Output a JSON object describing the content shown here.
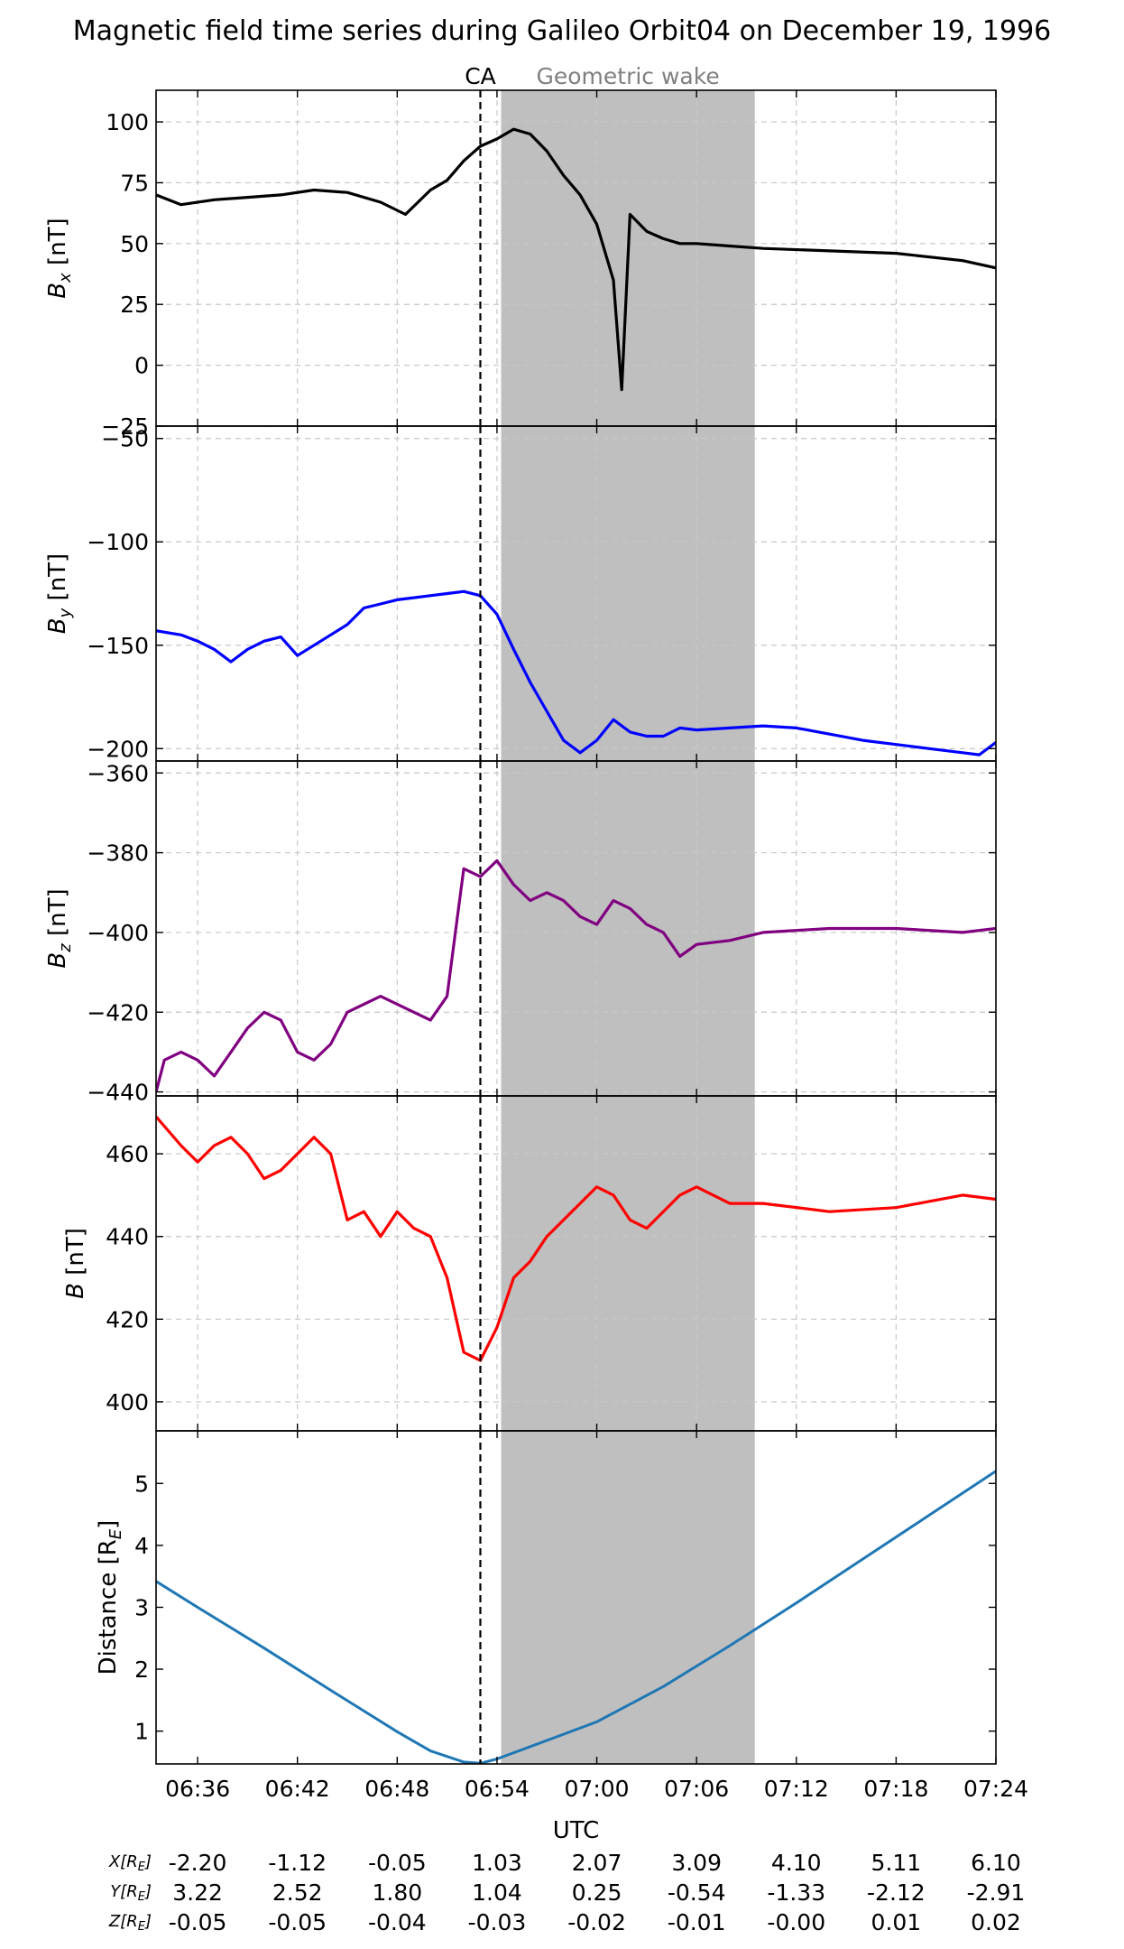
{
  "title": "Magnetic field time series during Galileo Orbit04 on December 19, 1996",
  "annotations": {
    "ca_label": "CA",
    "wake_label": "Geometric wake",
    "x_axis_label": "UTC"
  },
  "colors": {
    "bx": "#000000",
    "by": "#0000ff",
    "bz": "#800080",
    "b": "#ff0000",
    "distance": "#1f77b4",
    "wake": "#bfbfbf",
    "grid": "#c8c8c8"
  },
  "x_ticks": [
    "06:36",
    "06:42",
    "06:48",
    "06:54",
    "07:00",
    "07:06",
    "07:12",
    "07:18",
    "07:24"
  ],
  "chart_data": [
    {
      "type": "line",
      "ylabel": "B_x [nT]",
      "ylim": [
        -25,
        113
      ],
      "y_ticks": [
        -25,
        0,
        25,
        50,
        75,
        100
      ],
      "grid": true,
      "series": [
        {
          "color": "#000000",
          "x": [
            "06:33:30",
            "06:35",
            "06:37",
            "06:39",
            "06:41",
            "06:43",
            "06:45",
            "06:47",
            "06:48:30",
            "06:50",
            "06:51",
            "06:52",
            "06:53",
            "06:54",
            "06:55",
            "06:56",
            "06:57",
            "06:58",
            "06:59",
            "07:00",
            "07:01",
            "07:01:30",
            "07:02",
            "07:03",
            "07:04",
            "07:05",
            "07:06",
            "07:08",
            "07:10",
            "07:14",
            "07:18",
            "07:22",
            "07:24"
          ],
          "values": [
            70,
            66,
            68,
            69,
            70,
            72,
            71,
            67,
            62,
            72,
            76,
            84,
            90,
            93,
            97,
            95,
            88,
            78,
            70,
            58,
            35,
            -10,
            62,
            55,
            52,
            50,
            50,
            49,
            48,
            47,
            46,
            43,
            40
          ]
        }
      ]
    },
    {
      "type": "line",
      "ylabel": "B_y [nT]",
      "ylim": [
        -206,
        -44
      ],
      "y_ticks": [
        -50,
        -100,
        -150,
        -200
      ],
      "grid": true,
      "series": [
        {
          "color": "#0000ff",
          "x": [
            "06:33:30",
            "06:35",
            "06:36",
            "06:37",
            "06:38",
            "06:39",
            "06:40",
            "06:41",
            "06:42",
            "06:43",
            "06:44",
            "06:45",
            "06:46",
            "06:47",
            "06:48",
            "06:49",
            "06:50",
            "06:51",
            "06:52",
            "06:53",
            "06:54",
            "06:55",
            "06:56",
            "06:57",
            "06:58",
            "06:59",
            "07:00",
            "07:01",
            "07:02",
            "07:03",
            "07:04",
            "07:05",
            "07:06",
            "07:08",
            "07:10",
            "07:12",
            "07:14",
            "07:16",
            "07:18",
            "07:20",
            "07:22",
            "07:23",
            "07:24"
          ],
          "values": [
            -143,
            -145,
            -148,
            -152,
            -158,
            -152,
            -148,
            -146,
            -155,
            -150,
            -145,
            -140,
            -132,
            -130,
            -128,
            -127,
            -126,
            -125,
            -124,
            -126,
            -135,
            -152,
            -168,
            -182,
            -196,
            -202,
            -196,
            -186,
            -192,
            -194,
            -194,
            -190,
            -191,
            -190,
            -189,
            -190,
            -193,
            -196,
            -198,
            -200,
            -202,
            -203,
            -197
          ]
        }
      ]
    },
    {
      "type": "line",
      "ylabel": "B_z [nT]",
      "ylim": [
        -441,
        -357
      ],
      "y_ticks": [
        -360,
        -380,
        -400,
        -420,
        -440
      ],
      "grid": true,
      "series": [
        {
          "color": "#800080",
          "x": [
            "06:33:30",
            "06:34",
            "06:35",
            "06:36",
            "06:37",
            "06:38",
            "06:39",
            "06:40",
            "06:41",
            "06:42",
            "06:43",
            "06:44",
            "06:45",
            "06:46",
            "06:47",
            "06:48",
            "06:49",
            "06:50",
            "06:51",
            "06:51:30",
            "06:52",
            "06:53",
            "06:54",
            "06:55",
            "06:56",
            "06:57",
            "06:58",
            "06:59",
            "07:00",
            "07:01",
            "07:02",
            "07:03",
            "07:04",
            "07:05",
            "07:06",
            "07:08",
            "07:10",
            "07:14",
            "07:18",
            "07:22",
            "07:24"
          ],
          "values": [
            -440,
            -432,
            -430,
            -432,
            -436,
            -430,
            -424,
            -420,
            -422,
            -430,
            -432,
            -428,
            -420,
            -418,
            -416,
            -418,
            -420,
            -422,
            -416,
            -400,
            -384,
            -386,
            -382,
            -388,
            -392,
            -390,
            -392,
            -396,
            -398,
            -392,
            -394,
            -398,
            -400,
            -406,
            -403,
            -402,
            -400,
            -399,
            -399,
            -400,
            -399
          ]
        }
      ]
    },
    {
      "type": "line",
      "ylabel": "B [nT]",
      "ylim": [
        393,
        474
      ],
      "y_ticks": [
        400,
        420,
        440,
        460
      ],
      "grid": true,
      "series": [
        {
          "color": "#ff0000",
          "x": [
            "06:33:30",
            "06:35",
            "06:36",
            "06:37",
            "06:38",
            "06:39",
            "06:40",
            "06:41",
            "06:42",
            "06:43",
            "06:44",
            "06:45",
            "06:46",
            "06:47",
            "06:48",
            "06:49",
            "06:50",
            "06:51",
            "06:52",
            "06:53",
            "06:54",
            "06:55",
            "06:56",
            "06:57",
            "06:58",
            "06:59",
            "07:00",
            "07:01",
            "07:02",
            "07:03",
            "07:04",
            "07:05",
            "07:06",
            "07:08",
            "07:10",
            "07:14",
            "07:18",
            "07:22",
            "07:24"
          ],
          "values": [
            469,
            462,
            458,
            462,
            464,
            460,
            454,
            456,
            460,
            464,
            460,
            444,
            446,
            440,
            446,
            442,
            440,
            430,
            412,
            410,
            418,
            430,
            434,
            440,
            444,
            448,
            452,
            450,
            444,
            442,
            446,
            450,
            452,
            448,
            448,
            446,
            447,
            450,
            449
          ]
        }
      ]
    },
    {
      "type": "line",
      "ylabel": "Distance [R_E]",
      "ylim": [
        0.47,
        5.85
      ],
      "y_ticks": [
        1,
        2,
        3,
        4,
        5
      ],
      "grid": false,
      "series": [
        {
          "color": "#1f77b4",
          "x": [
            "06:33:30",
            "06:36",
            "06:40",
            "06:44",
            "06:48",
            "06:50",
            "06:52",
            "06:53",
            "06:54",
            "06:56",
            "06:58",
            "07:00",
            "07:04",
            "07:08",
            "07:12",
            "07:16",
            "07:20",
            "07:24"
          ],
          "values": [
            3.42,
            3.0,
            2.34,
            1.66,
            0.99,
            0.68,
            0.5,
            0.48,
            0.55,
            0.75,
            0.95,
            1.15,
            1.72,
            2.38,
            3.07,
            3.78,
            4.49,
            5.2
          ]
        }
      ]
    }
  ],
  "ca_time": "06:53:00",
  "wake_range": [
    "06:54:15",
    "07:09:30"
  ],
  "position_table": {
    "row_labels": [
      "X[R_E]",
      "Y[R_E]",
      "Z[R_E]"
    ],
    "rows": [
      [
        "-2.20",
        "-1.12",
        "-0.05",
        "1.03",
        "2.07",
        "3.09",
        "4.10",
        "5.11",
        "6.10"
      ],
      [
        "3.22",
        "2.52",
        "1.80",
        "1.04",
        "0.25",
        "-0.54",
        "-1.33",
        "-2.12",
        "-2.91"
      ],
      [
        "-0.05",
        "-0.05",
        "-0.04",
        "-0.03",
        "-0.02",
        "-0.01",
        "-0.00",
        "0.01",
        "0.02"
      ]
    ]
  }
}
